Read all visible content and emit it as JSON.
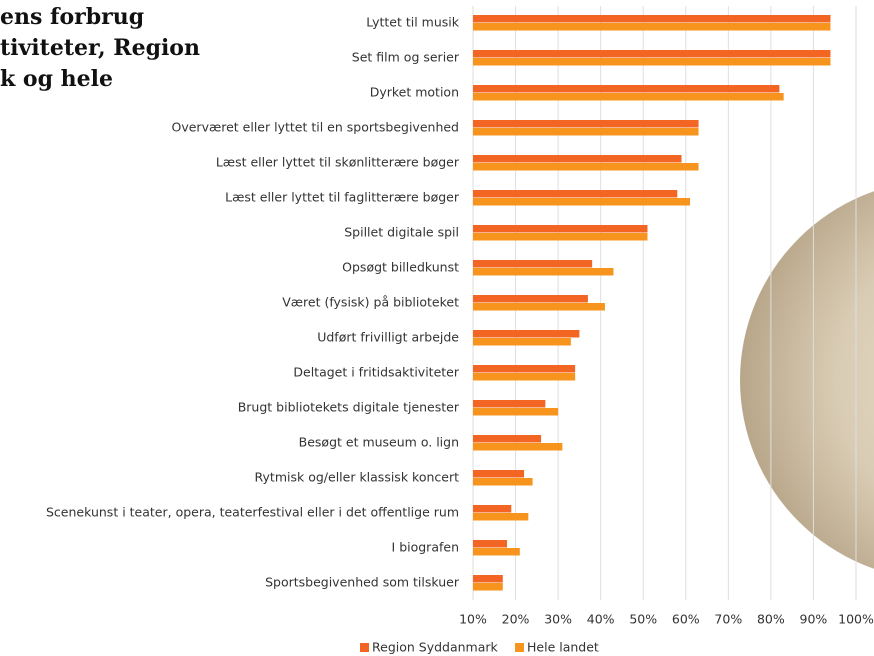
{
  "chart_data": {
    "type": "bar",
    "title_lines": [
      "ens forbrug",
      "tiviteter, Region",
      "k og hele"
    ],
    "categories": [
      "Lyttet til musik",
      "Set film og serier",
      "Dyrket motion",
      "Overværet eller lyttet til en sportsbegivenhed",
      "Læst eller lyttet til skønlitterære bøger",
      "Læst eller lyttet til faglitterære bøger",
      "Spillet digitale spil",
      "Opsøgt billedkunst",
      "Været (fysisk) på biblioteket",
      "Udført frivilligt arbejde",
      "Deltaget i fritidsaktiviteter",
      "Brugt bibliotekets digitale tjenester",
      "Besøgt et museum o. lign",
      "Rytmisk og/eller klassisk koncert",
      "Scenekunst i teater, opera, teaterfestival eller i det offentlige rum",
      "I biografen",
      "Sportsbegivenhed som tilskuer"
    ],
    "series": [
      {
        "name": "Region Syddanmark",
        "color": "#f26522",
        "values": [
          94,
          94,
          82,
          63,
          59,
          58,
          51,
          38,
          37,
          35,
          34,
          27,
          26,
          22,
          19,
          18,
          17
        ]
      },
      {
        "name": "Hele landet",
        "color": "#f7941d",
        "values": [
          94,
          94,
          83,
          63,
          63,
          61,
          51,
          43,
          41,
          33,
          34,
          30,
          31,
          24,
          23,
          21,
          17
        ]
      }
    ],
    "xlim": [
      10,
      100
    ],
    "xticks": [
      {
        "value": 10,
        "label": "10%"
      },
      {
        "value": 20,
        "label": "20%"
      },
      {
        "value": 30,
        "label": "30%"
      },
      {
        "value": 40,
        "label": "40%"
      },
      {
        "value": 50,
        "label": "50%"
      },
      {
        "value": 60,
        "label": "60%"
      },
      {
        "value": 70,
        "label": "70%"
      },
      {
        "value": 80,
        "label": "80%"
      },
      {
        "value": 90,
        "label": "90%"
      },
      {
        "value": 100,
        "label": "100%"
      }
    ],
    "grid": true,
    "legend": "bottom"
  }
}
